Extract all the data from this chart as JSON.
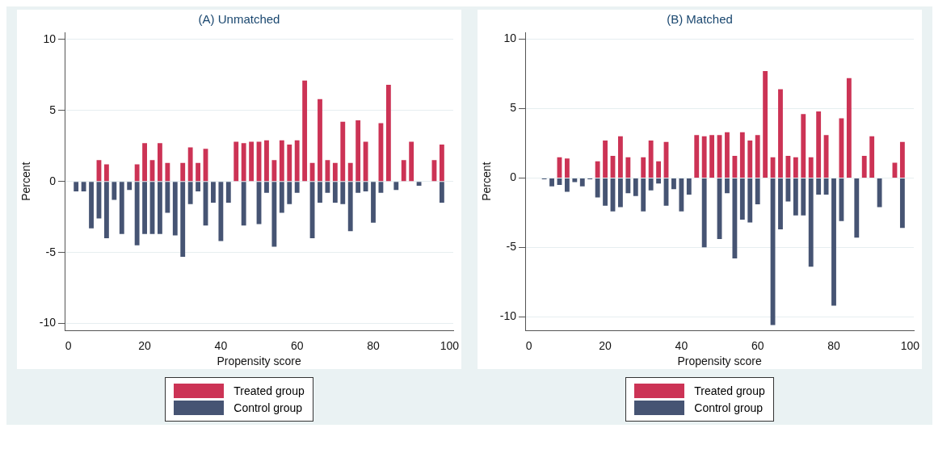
{
  "chart_data": [
    {
      "type": "bar",
      "title": "(A) Unmatched",
      "xlabel": "Propensity score",
      "ylabel": "Percent",
      "stacked": true,
      "x": [
        2,
        4,
        6,
        8,
        10,
        12,
        14,
        16,
        18,
        20,
        22,
        24,
        26,
        28,
        30,
        32,
        34,
        36,
        38,
        40,
        42,
        44,
        46,
        48,
        50,
        52,
        54,
        56,
        58,
        60,
        62,
        64,
        66,
        68,
        70,
        72,
        74,
        76,
        78,
        80,
        82,
        84,
        86,
        88,
        90,
        92,
        94,
        96,
        98
      ],
      "series": [
        {
          "name": "Treated group",
          "color": "#cc3355",
          "values": [
            null,
            null,
            null,
            1.5,
            1.2,
            null,
            null,
            null,
            1.2,
            2.7,
            1.5,
            2.7,
            1.3,
            null,
            1.3,
            2.4,
            1.3,
            2.3,
            null,
            null,
            null,
            2.8,
            2.7,
            2.8,
            2.8,
            2.9,
            1.5,
            2.9,
            2.6,
            2.9,
            7.1,
            1.3,
            5.8,
            1.5,
            1.3,
            4.2,
            1.3,
            4.3,
            2.8,
            null,
            4.1,
            6.8,
            null,
            1.5,
            2.8,
            null,
            null,
            1.5,
            2.6
          ]
        },
        {
          "name": "Control group",
          "color": "#465473",
          "values": [
            -0.7,
            -0.7,
            -3.3,
            -2.6,
            -4.0,
            -1.3,
            -3.7,
            -0.6,
            -4.5,
            -3.7,
            -3.7,
            -3.7,
            -2.2,
            -3.8,
            -5.3,
            -1.6,
            -0.7,
            -3.1,
            -1.5,
            -4.2,
            -1.5,
            null,
            -3.1,
            null,
            -3.0,
            -0.8,
            -4.6,
            -2.2,
            -1.6,
            -0.8,
            null,
            -4.0,
            -1.5,
            -0.8,
            -1.5,
            -1.6,
            -3.5,
            -0.8,
            -0.7,
            -2.9,
            -0.8,
            null,
            -0.6,
            null,
            null,
            -0.3,
            null,
            null,
            -1.5
          ]
        }
      ],
      "xlim": [
        -1,
        101
      ],
      "xticks": [
        0,
        20,
        40,
        60,
        80,
        100
      ],
      "ylim": [
        -10.5,
        10.5
      ],
      "yticks": [
        -10,
        -5,
        0,
        5,
        10
      ],
      "grid": "y",
      "legend": "bottom"
    },
    {
      "type": "bar",
      "title": "(B) Matched",
      "xlabel": "Propensity score",
      "ylabel": "Percent",
      "stacked": true,
      "x": [
        4,
        6,
        8,
        10,
        12,
        14,
        16,
        18,
        20,
        22,
        24,
        26,
        28,
        30,
        32,
        34,
        36,
        38,
        40,
        42,
        44,
        46,
        48,
        50,
        52,
        54,
        56,
        58,
        60,
        62,
        64,
        66,
        68,
        70,
        72,
        74,
        76,
        78,
        80,
        82,
        84,
        86,
        88,
        90,
        92,
        94,
        96,
        98
      ],
      "series": [
        {
          "name": "Treated group",
          "color": "#cc3355",
          "values": [
            null,
            null,
            1.5,
            1.4,
            null,
            null,
            null,
            1.2,
            2.7,
            1.6,
            3.0,
            1.5,
            null,
            1.5,
            2.7,
            1.2,
            2.6,
            null,
            null,
            null,
            3.1,
            3.0,
            3.1,
            3.1,
            3.3,
            1.6,
            3.3,
            2.7,
            3.1,
            7.7,
            1.5,
            6.4,
            1.6,
            1.5,
            4.6,
            1.5,
            4.8,
            3.1,
            null,
            4.3,
            7.2,
            null,
            1.6,
            3.0,
            null,
            null,
            1.1,
            2.6
          ]
        },
        {
          "name": "Control group",
          "color": "#465473",
          "values": [
            -0.1,
            -0.6,
            -0.5,
            -1.0,
            -0.3,
            -0.6,
            -0.1,
            -1.4,
            -2.0,
            -2.4,
            -2.1,
            -1.1,
            -1.3,
            -2.4,
            -0.9,
            -0.4,
            -2.0,
            -0.8,
            -2.4,
            -1.2,
            null,
            -5.0,
            null,
            -4.4,
            -1.1,
            -5.8,
            -3.0,
            -3.2,
            -1.9,
            null,
            -10.6,
            -3.7,
            -1.7,
            -2.7,
            -2.7,
            -6.4,
            -1.2,
            -1.2,
            -9.2,
            -3.1,
            null,
            -4.3,
            null,
            null,
            -2.1,
            null,
            null,
            -3.6
          ]
        }
      ],
      "xlim": [
        -1,
        101
      ],
      "xticks": [
        0,
        20,
        40,
        60,
        80,
        100
      ],
      "ylim": [
        -11,
        10.5
      ],
      "yticks": [
        -10,
        -5,
        0,
        5,
        10
      ],
      "grid": "y",
      "legend": "bottom"
    }
  ]
}
